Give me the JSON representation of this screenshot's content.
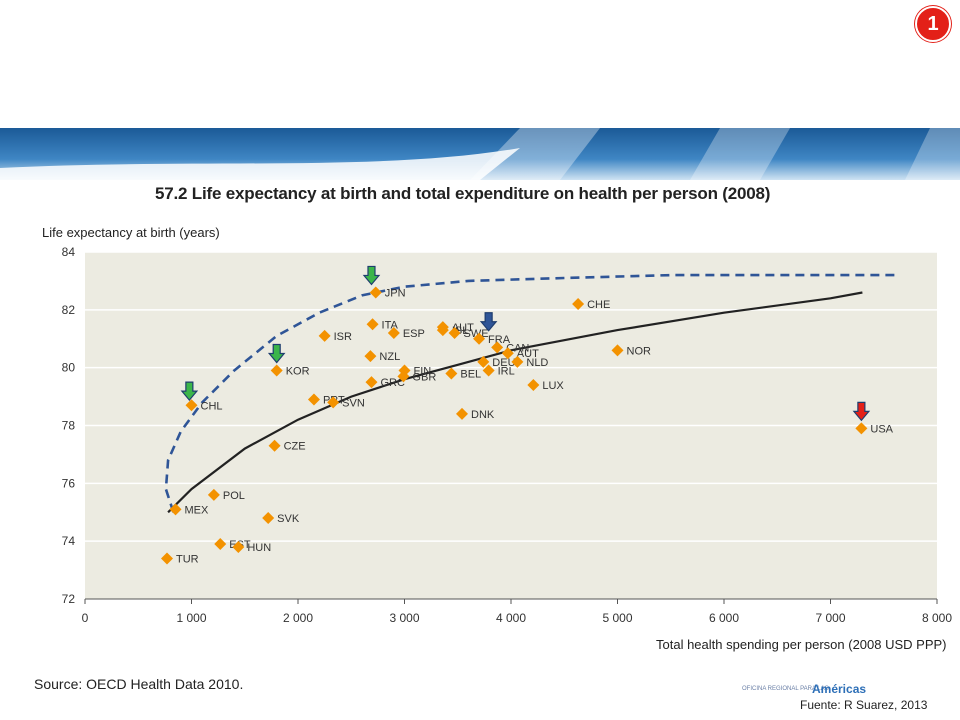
{
  "slide_number": "1",
  "source": "Source:  OECD Health Data 2010.",
  "credit": "Fuente: R Suarez, 2013",
  "logo": {
    "small_text": "OFICINA REGIONAL PARA LAS",
    "word": "Américas"
  },
  "colors": {
    "points": "#f39200",
    "trend": "#222222",
    "frontier": "#2f5597",
    "plot_bg": "#ecebe1",
    "banner": "#1f5fa0",
    "badge": "#e32018"
  },
  "chart_data": {
    "type": "scatter",
    "title": "57.2 Life expectancy at birth and total expenditure on health per person (2008)",
    "xlabel": "Total health spending per person (2008 USD PPP)",
    "ylabel": "Life expectancy at birth (years)",
    "xlim": [
      0,
      8000
    ],
    "ylim": [
      72,
      84
    ],
    "x_ticks": [
      "0",
      "1 000",
      "2 000",
      "3 000",
      "4 000",
      "5 000",
      "6 000",
      "7 000",
      "8 000"
    ],
    "y_ticks": [
      "72",
      "74",
      "76",
      "78",
      "80",
      "82",
      "84"
    ],
    "grid": "horizontal",
    "points": [
      {
        "label": "TUR",
        "x": 770,
        "y": 73.4
      },
      {
        "label": "MEX",
        "x": 850,
        "y": 75.1
      },
      {
        "label": "EST",
        "x": 1270,
        "y": 73.9
      },
      {
        "label": "HUN",
        "x": 1440,
        "y": 73.8
      },
      {
        "label": "POL",
        "x": 1210,
        "y": 75.6
      },
      {
        "label": "SVK",
        "x": 1720,
        "y": 74.8
      },
      {
        "label": "CHL",
        "x": 1000,
        "y": 78.7
      },
      {
        "label": "CZE",
        "x": 1780,
        "y": 77.3
      },
      {
        "label": "KOR",
        "x": 1800,
        "y": 79.9
      },
      {
        "label": "PRT",
        "x": 2150,
        "y": 78.9
      },
      {
        "label": "SVN",
        "x": 2330,
        "y": 78.8
      },
      {
        "label": "ISR",
        "x": 2250,
        "y": 81.1
      },
      {
        "label": "GRC",
        "x": 2690,
        "y": 79.5
      },
      {
        "label": "NZL",
        "x": 2680,
        "y": 80.4
      },
      {
        "label": "ITA",
        "x": 2700,
        "y": 81.5
      },
      {
        "label": "JPN",
        "x": 2730,
        "y": 82.6
      },
      {
        "label": "ESP",
        "x": 2900,
        "y": 81.2
      },
      {
        "label": "FIN",
        "x": 3000,
        "y": 79.9
      },
      {
        "label": "GBR",
        "x": 2990,
        "y": 79.7
      },
      {
        "label": "AUT",
        "x": 3360,
        "y": 81.4
      },
      {
        "label": "ISL",
        "x": 3360,
        "y": 81.3
      },
      {
        "label": "SWE",
        "x": 3470,
        "y": 81.2
      },
      {
        "label": "BEL",
        "x": 3440,
        "y": 79.8
      },
      {
        "label": "DNK",
        "x": 3540,
        "y": 78.4
      },
      {
        "label": "FRA",
        "x": 3700,
        "y": 81.0
      },
      {
        "label": "DEU",
        "x": 3740,
        "y": 80.2
      },
      {
        "label": "IRL",
        "x": 3790,
        "y": 79.9
      },
      {
        "label": "CAN",
        "x": 3870,
        "y": 80.7
      },
      {
        "label": "AUT",
        "x": 3970,
        "y": 80.5
      },
      {
        "label": "NLD",
        "x": 4060,
        "y": 80.2
      },
      {
        "label": "LUX",
        "x": 4210,
        "y": 79.4
      },
      {
        "label": "CHE",
        "x": 4630,
        "y": 82.2
      },
      {
        "label": "NOR",
        "x": 5000,
        "y": 80.6
      },
      {
        "label": "USA",
        "x": 7290,
        "y": 77.9
      }
    ],
    "trend_line": {
      "x": [
        780,
        1000,
        1500,
        2000,
        2500,
        3000,
        3500,
        4000,
        5000,
        6000,
        7000,
        7300
      ],
      "y": [
        75.0,
        75.8,
        77.2,
        78.2,
        79.0,
        79.6,
        80.1,
        80.6,
        81.3,
        81.9,
        82.4,
        82.6
      ]
    },
    "frontier_line": {
      "x": [
        830,
        760,
        780,
        900,
        1100,
        1400,
        1800,
        2200,
        2600,
        3000,
        3600,
        4500,
        5500,
        6500,
        7300,
        7650
      ],
      "y": [
        75.0,
        75.8,
        76.8,
        77.8,
        78.8,
        79.9,
        81.1,
        81.9,
        82.5,
        82.8,
        83.0,
        83.1,
        83.2,
        83.2,
        83.2,
        83.2
      ]
    },
    "arrows": [
      {
        "x": 980,
        "y": 79.5,
        "color": "#3bb54a"
      },
      {
        "x": 1800,
        "y": 80.8,
        "color": "#3bb54a"
      },
      {
        "x": 2690,
        "y": 83.5,
        "color": "#3bb54a"
      },
      {
        "x": 3790,
        "y": 81.9,
        "color": "#2f5597"
      },
      {
        "x": 7290,
        "y": 78.8,
        "color": "#e32018"
      }
    ]
  }
}
